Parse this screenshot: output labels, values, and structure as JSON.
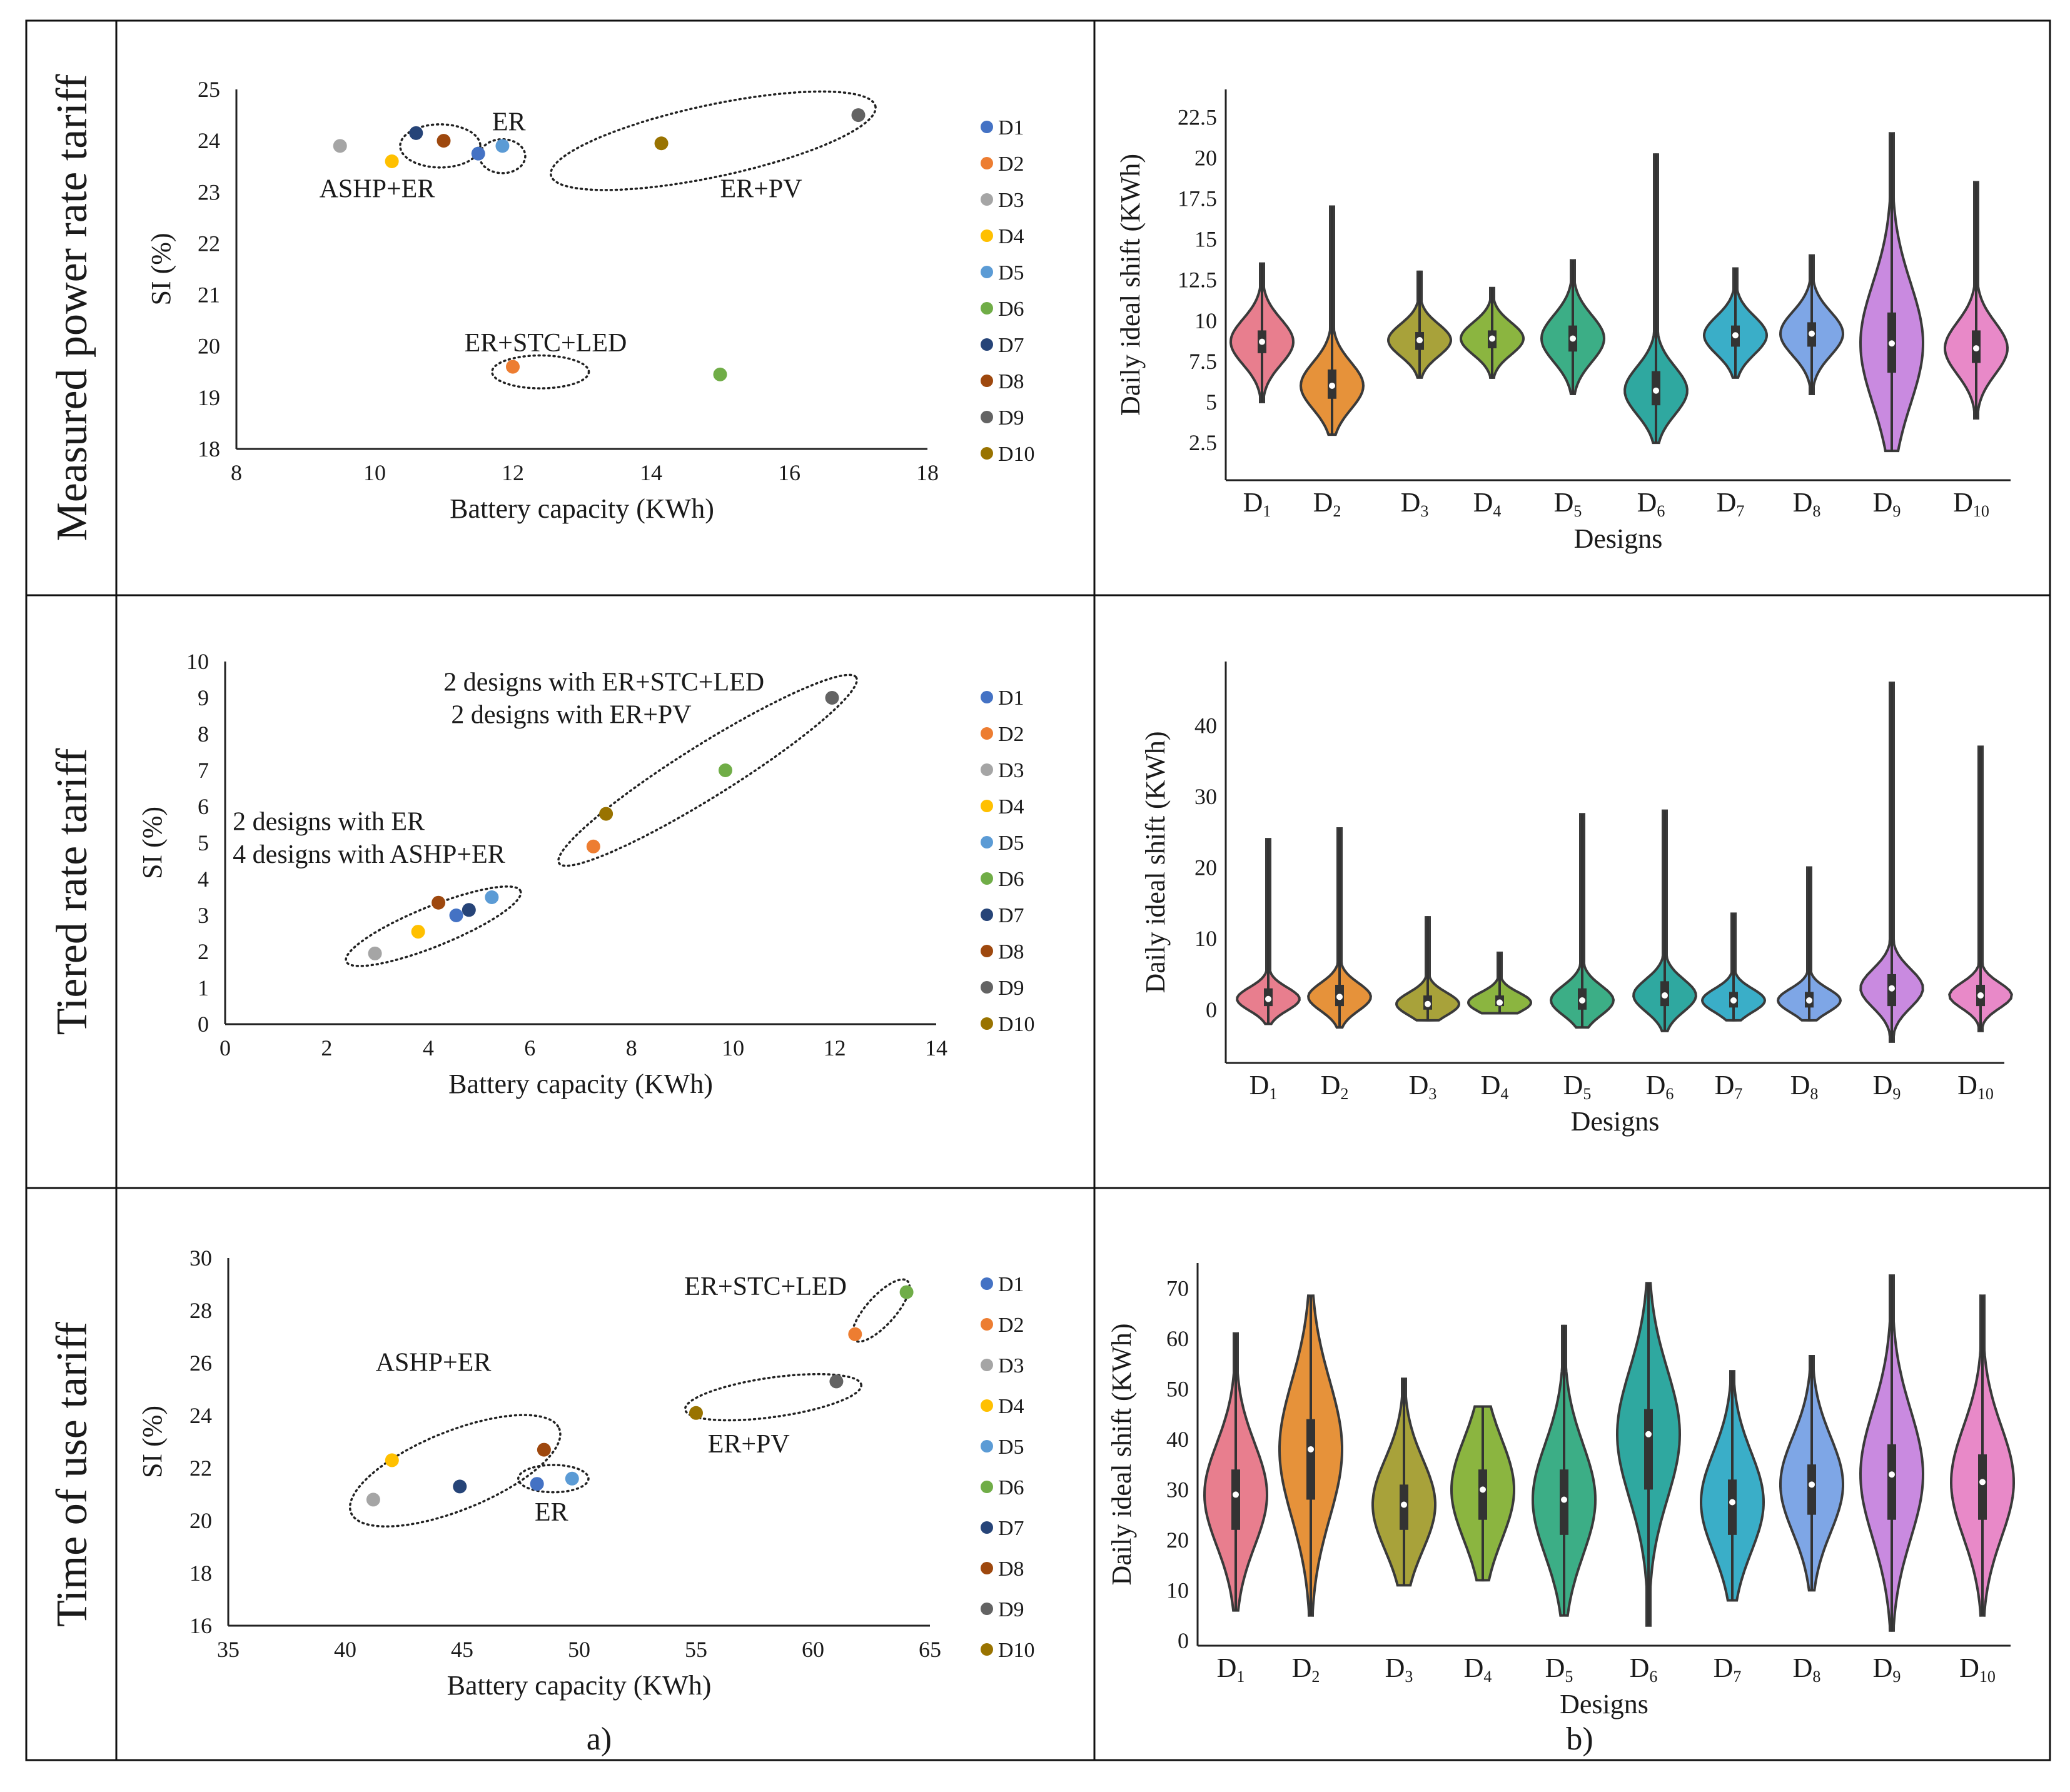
{
  "row_labels": [
    "Measured power rate tariff",
    "Tiered rate tariff",
    "Time of use tariff"
  ],
  "panel_labels": [
    "a)",
    "b)"
  ],
  "legend": {
    "names": [
      "D1",
      "D2",
      "D3",
      "D4",
      "D5",
      "D6",
      "D7",
      "D8",
      "D9",
      "D10"
    ],
    "colors": [
      "#4472C4",
      "#ED7D31",
      "#A5A5A5",
      "#FFC000",
      "#5B9BD5",
      "#70AD47",
      "#264478",
      "#9E480E",
      "#636363",
      "#997300"
    ]
  },
  "violin": {
    "colors": [
      "#E87E8E",
      "#E6923A",
      "#A8A23A",
      "#8BB540",
      "#3CAE86",
      "#2FA8A0",
      "#3AAEC8",
      "#7EA6E6",
      "#C98AE0",
      "#E889C8"
    ],
    "xtick_base": "D",
    "xtick_subs": [
      "1",
      "2",
      "3",
      "4",
      "5",
      "6",
      "7",
      "8",
      "9",
      "10"
    ]
  },
  "chart_data": [
    {
      "type": "scatter",
      "title": "Measured power rate tariff - a)",
      "xlabel": "Battery capacity (KWh)",
      "ylabel": "SI (%)",
      "xlim": [
        8,
        18
      ],
      "ylim": [
        18,
        25
      ],
      "xticks": [
        8,
        10,
        12,
        14,
        16,
        18
      ],
      "yticks": [
        18,
        19,
        20,
        21,
        22,
        23,
        24,
        25
      ],
      "series": [
        {
          "name": "D1",
          "x": [
            11.5
          ],
          "y": [
            23.75
          ]
        },
        {
          "name": "D2",
          "x": [
            12.0
          ],
          "y": [
            19.6
          ]
        },
        {
          "name": "D3",
          "x": [
            9.5
          ],
          "y": [
            23.9
          ]
        },
        {
          "name": "D4",
          "x": [
            10.25
          ],
          "y": [
            23.6
          ]
        },
        {
          "name": "D5",
          "x": [
            11.85
          ],
          "y": [
            23.9
          ]
        },
        {
          "name": "D6",
          "x": [
            15.0
          ],
          "y": [
            19.45
          ]
        },
        {
          "name": "D7",
          "x": [
            10.6
          ],
          "y": [
            24.15
          ]
        },
        {
          "name": "D8",
          "x": [
            11.0
          ],
          "y": [
            24.0
          ]
        },
        {
          "name": "D9",
          "x": [
            17.0
          ],
          "y": [
            24.5
          ]
        },
        {
          "name": "D10",
          "x": [
            14.15
          ],
          "y": [
            23.95
          ]
        }
      ],
      "annotations": [
        {
          "text": "ASHP+ER",
          "x": 9.2,
          "y": 22.9
        },
        {
          "text": "ER",
          "x": 11.7,
          "y": 24.2
        },
        {
          "text": "ER+PV",
          "x": 15.0,
          "y": 22.9
        },
        {
          "text": "ER+STC+LED",
          "x": 11.3,
          "y": 19.9
        }
      ],
      "ellipses": [
        {
          "cx": 10.95,
          "cy": 23.9,
          "rx": 0.58,
          "ry": 0.42,
          "angle": 0
        },
        {
          "cx": 11.85,
          "cy": 23.7,
          "rx": 0.33,
          "ry": 0.33,
          "angle": 0
        },
        {
          "cx": 14.9,
          "cy": 24.0,
          "rx": 2.4,
          "ry": 0.7,
          "angle": -12
        },
        {
          "cx": 12.4,
          "cy": 19.5,
          "rx": 0.7,
          "ry": 0.32,
          "angle": 0
        }
      ]
    },
    {
      "type": "violin",
      "title": "Measured power rate tariff - b)",
      "xlabel": "Designs",
      "ylabel": "Daily ideal shift (KWh)",
      "ylim": [
        0.2,
        24.2
      ],
      "yticks": [
        2.5,
        5,
        7.5,
        10,
        12.5,
        15,
        17.5,
        20,
        22.5
      ],
      "categories": [
        "D1",
        "D2",
        "D3",
        "D4",
        "D5",
        "D6",
        "D7",
        "D8",
        "D9",
        "D10"
      ],
      "min": [
        5.0,
        3.0,
        6.5,
        6.5,
        5.5,
        2.5,
        6.5,
        5.5,
        2.0,
        4.0
      ],
      "q1": [
        8.0,
        5.2,
        8.2,
        8.3,
        8.1,
        4.8,
        8.4,
        8.4,
        6.8,
        7.4
      ],
      "median": [
        8.7,
        6.0,
        8.8,
        8.9,
        8.9,
        5.7,
        9.1,
        9.2,
        8.6,
        8.3
      ],
      "q3": [
        9.4,
        7.0,
        9.3,
        9.4,
        9.7,
        6.9,
        9.7,
        9.9,
        10.5,
        9.4
      ],
      "max": [
        13.5,
        17.0,
        13.0,
        12.0,
        13.7,
        20.2,
        13.2,
        14.0,
        21.5,
        18.5
      ],
      "spread": [
        1.0,
        0.8,
        0.9,
        0.9,
        0.9,
        0.7,
        0.9,
        0.9,
        1.0,
        0.8
      ]
    },
    {
      "type": "scatter",
      "title": "Tiered rate tariff - a)",
      "xlabel": "Battery capacity (KWh)",
      "ylabel": "SI (%)",
      "xlim": [
        0,
        14
      ],
      "ylim": [
        0,
        10
      ],
      "xticks": [
        0,
        2,
        4,
        6,
        8,
        10,
        12,
        14
      ],
      "yticks": [
        0,
        1,
        2,
        3,
        4,
        5,
        6,
        7,
        8,
        9,
        10
      ],
      "series": [
        {
          "name": "D1",
          "x": [
            4.55
          ],
          "y": [
            3.0
          ]
        },
        {
          "name": "D2",
          "x": [
            7.25
          ],
          "y": [
            4.9
          ]
        },
        {
          "name": "D3",
          "x": [
            2.95
          ],
          "y": [
            1.95
          ]
        },
        {
          "name": "D4",
          "x": [
            3.8
          ],
          "y": [
            2.55
          ]
        },
        {
          "name": "D5",
          "x": [
            5.25
          ],
          "y": [
            3.5
          ]
        },
        {
          "name": "D6",
          "x": [
            9.85
          ],
          "y": [
            7.0
          ]
        },
        {
          "name": "D7",
          "x": [
            4.8
          ],
          "y": [
            3.15
          ]
        },
        {
          "name": "D8",
          "x": [
            4.2
          ],
          "y": [
            3.35
          ]
        },
        {
          "name": "D9",
          "x": [
            11.95
          ],
          "y": [
            9.0
          ]
        },
        {
          "name": "D10",
          "x": [
            7.5
          ],
          "y": [
            5.8
          ]
        }
      ],
      "annotations": [
        {
          "text": "2 designs with ER+STC+LED",
          "x": 4.3,
          "y": 9.2
        },
        {
          "text": "2 designs with ER+PV",
          "x": 4.45,
          "y": 8.3
        },
        {
          "text": "2 designs with ER",
          "x": 0.15,
          "y": 5.35
        },
        {
          "text": "4 designs with ASHP+ER",
          "x": 0.15,
          "y": 4.45
        }
      ],
      "ellipses": [
        {
          "cx": 4.1,
          "cy": 2.7,
          "rx": 1.85,
          "ry": 0.55,
          "angle": -22
        },
        {
          "cx": 9.5,
          "cy": 7.0,
          "rx": 3.45,
          "ry": 0.72,
          "angle": -32
        }
      ]
    },
    {
      "type": "violin",
      "title": "Tiered rate tariff - b)",
      "xlabel": "Designs",
      "ylabel": "Daily ideal shift (KWh)",
      "ylim": [
        -7.5,
        49
      ],
      "yticks": [
        0,
        10,
        20,
        30,
        40
      ],
      "categories": [
        "D1",
        "D2",
        "D3",
        "D4",
        "D5",
        "D6",
        "D7",
        "D8",
        "D9",
        "D10"
      ],
      "min": [
        -2.0,
        -2.5,
        -1.5,
        -0.5,
        -2.5,
        -3.0,
        -1.5,
        -1.5,
        -4.5,
        -3.0
      ],
      "q1": [
        0.5,
        0.5,
        0.0,
        0.5,
        0.0,
        0.5,
        0.3,
        0.3,
        0.5,
        0.5
      ],
      "median": [
        1.5,
        1.8,
        0.8,
        1.0,
        1.3,
        2.0,
        1.3,
        1.3,
        3.0,
        2.0
      ],
      "q3": [
        3.0,
        3.5,
        2.0,
        2.0,
        3.0,
        4.0,
        2.5,
        2.5,
        5.0,
        3.5
      ],
      "max": [
        24.0,
        25.5,
        13.0,
        8.0,
        27.5,
        28.0,
        13.5,
        20.0,
        46.0,
        37.0
      ],
      "spread": [
        0.65,
        0.65,
        0.8,
        0.95,
        0.7,
        0.65,
        0.75,
        0.75,
        0.6,
        0.6
      ]
    },
    {
      "type": "scatter",
      "title": "Time of use tariff - a)",
      "xlabel": "Battery capacity (KWh)",
      "ylabel": "SI (%)",
      "xlim": [
        35,
        65
      ],
      "ylim": [
        16,
        30
      ],
      "xticks": [
        35,
        40,
        45,
        50,
        55,
        60,
        65
      ],
      "yticks": [
        16,
        18,
        20,
        22,
        24,
        26,
        28,
        30
      ],
      "series": [
        {
          "name": "D1",
          "x": [
            48.2
          ],
          "y": [
            21.4
          ]
        },
        {
          "name": "D2",
          "x": [
            61.8
          ],
          "y": [
            27.1
          ]
        },
        {
          "name": "D3",
          "x": [
            41.2
          ],
          "y": [
            20.8
          ]
        },
        {
          "name": "D4",
          "x": [
            42.0
          ],
          "y": [
            22.3
          ]
        },
        {
          "name": "D5",
          "x": [
            49.7
          ],
          "y": [
            21.6
          ]
        },
        {
          "name": "D6",
          "x": [
            64.0
          ],
          "y": [
            28.7
          ]
        },
        {
          "name": "D7",
          "x": [
            44.9
          ],
          "y": [
            21.3
          ]
        },
        {
          "name": "D8",
          "x": [
            48.5
          ],
          "y": [
            22.7
          ]
        },
        {
          "name": "D9",
          "x": [
            61.0
          ],
          "y": [
            25.3
          ]
        },
        {
          "name": "D10",
          "x": [
            55.0
          ],
          "y": [
            24.1
          ]
        }
      ],
      "annotations": [
        {
          "text": "ASHP+ER",
          "x": 41.3,
          "y": 25.7
        },
        {
          "text": "ER",
          "x": 48.1,
          "y": 20.0
        },
        {
          "text": "ER+PV",
          "x": 55.5,
          "y": 22.6
        },
        {
          "text": "ER+STC+LED",
          "x": 54.5,
          "y": 28.6
        }
      ],
      "ellipses": [
        {
          "cx": 44.7,
          "cy": 21.9,
          "rx": 4.8,
          "ry": 1.5,
          "angle": -22
        },
        {
          "cx": 48.9,
          "cy": 21.6,
          "rx": 1.5,
          "ry": 0.52,
          "angle": 0
        },
        {
          "cx": 58.3,
          "cy": 24.7,
          "rx": 3.8,
          "ry": 0.75,
          "angle": -8
        },
        {
          "cx": 62.9,
          "cy": 28.0,
          "rx": 1.7,
          "ry": 0.55,
          "angle": -48
        }
      ]
    },
    {
      "type": "violin",
      "title": "Time of use tariff - b)",
      "xlabel": "Designs",
      "ylabel": "Daily ideal shift (KWh)",
      "ylim": [
        -1,
        75
      ],
      "yticks": [
        0,
        10,
        20,
        30,
        40,
        50,
        60,
        70
      ],
      "categories": [
        "D1",
        "D2",
        "D3",
        "D4",
        "D5",
        "D6",
        "D7",
        "D8",
        "D9",
        "D10"
      ],
      "min": [
        6.0,
        5.0,
        11.0,
        12.0,
        5.0,
        3.0,
        8.0,
        10.0,
        2.0,
        5.0
      ],
      "q1": [
        22.0,
        28.0,
        22.0,
        24.0,
        21.0,
        30.0,
        21.0,
        25.0,
        24.0,
        24.0
      ],
      "median": [
        29.0,
        38.0,
        27.0,
        30.0,
        28.0,
        41.0,
        27.5,
        31.0,
        33.0,
        31.5
      ],
      "q3": [
        34.0,
        44.0,
        31.0,
        34.0,
        34.0,
        46.0,
        32.0,
        35.0,
        39.0,
        37.0
      ],
      "max": [
        61.0,
        68.5,
        52.0,
        46.5,
        62.5,
        71.0,
        53.5,
        56.5,
        72.5,
        68.5
      ],
      "spread": [
        0.85,
        0.85,
        1.0,
        1.0,
        0.85,
        0.8,
        0.9,
        0.95,
        0.85,
        0.85
      ]
    }
  ]
}
